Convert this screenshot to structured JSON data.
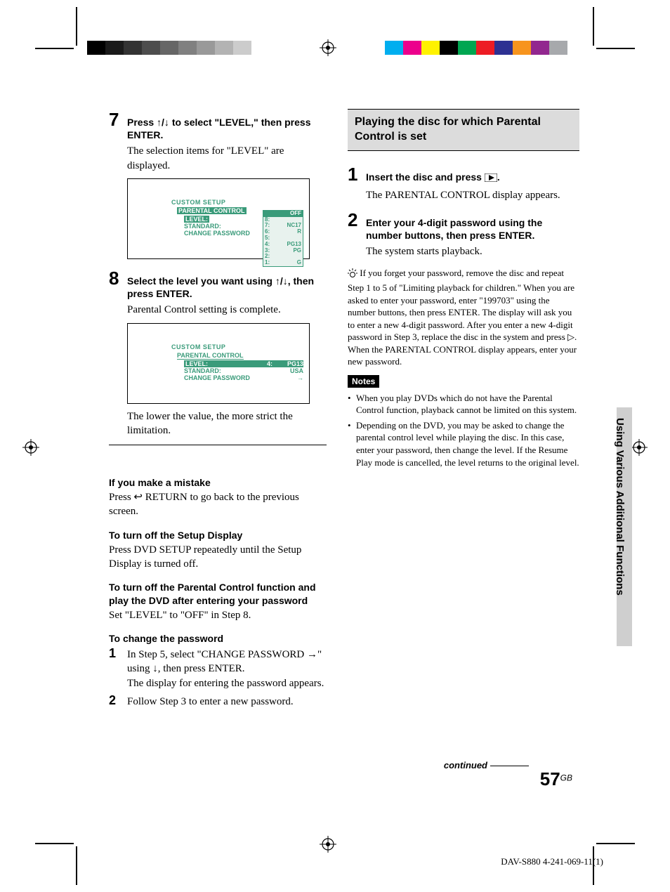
{
  "print": {
    "gray_bar": [
      "#000000",
      "#1a1a1a",
      "#333333",
      "#4d4d4d",
      "#666666",
      "#808080",
      "#999999",
      "#b3b3b3",
      "#cccccc",
      "#ffffff"
    ],
    "color_bar": [
      "#00aeef",
      "#ec008c",
      "#fff200",
      "#000000",
      "#00a651",
      "#ed1c24",
      "#2e3192",
      "#f7941d",
      "#92278f",
      "#a7a9ac"
    ]
  },
  "left": {
    "step7": {
      "num": "7",
      "head_a": "Press ",
      "head_arrows": "↑/↓",
      "head_b": " to select \"LEVEL,\" then press ENTER.",
      "body": "The selection items for \"LEVEL\" are displayed."
    },
    "screen1": {
      "title": "CUSTOM SETUP",
      "sub": "PARENTAL CONTROL",
      "rows": [
        {
          "label": "LEVEL:",
          "val": "OFF",
          "sel": true
        },
        {
          "label": "STANDARD:",
          "val": ""
        },
        {
          "label": "CHANGE PASSWORD",
          "val": ""
        }
      ],
      "dropdown": [
        {
          "n": "",
          "v": "OFF",
          "sel": true
        },
        {
          "n": "8:",
          "v": ""
        },
        {
          "n": "7:",
          "v": "NC17"
        },
        {
          "n": "6:",
          "v": "R"
        },
        {
          "n": "5:",
          "v": ""
        },
        {
          "n": "4:",
          "v": "PG13"
        },
        {
          "n": "3:",
          "v": "PG"
        },
        {
          "n": "2:",
          "v": ""
        },
        {
          "n": "1:",
          "v": "G"
        }
      ]
    },
    "step8": {
      "num": "8",
      "head_a": "Select the level you want using ",
      "head_arrows": "↑/↓",
      "head_b": ", then press ENTER.",
      "body": "Parental Control setting is complete."
    },
    "screen2": {
      "title": "CUSTOM SETUP",
      "sub": "PARENTAL CONTROL",
      "rows": [
        {
          "label": "LEVEL:",
          "n": "4:",
          "val": "PG13",
          "sel": true
        },
        {
          "label": "STANDARD:",
          "val": "USA"
        },
        {
          "label": "CHANGE PASSWORD",
          "val": "→"
        }
      ]
    },
    "after8": "The lower the value, the more strict the limitation.",
    "mistake_h": "If you make a mistake",
    "mistake_b": "Press ↩ RETURN to go back to the previous screen.",
    "turnoff_h": "To turn off the Setup Display",
    "turnoff_b": "Press DVD SETUP repeatedly until the Setup Display is turned off.",
    "pcoff_h": "To turn off the Parental Control function and play the DVD after entering your password",
    "pcoff_b": "Set \"LEVEL\" to \"OFF\" in Step 8.",
    "chpw_h": "To change the password",
    "chpw_1": {
      "num": "1",
      "body_a": "In Step 5, select \"CHANGE PASSWORD →\" using ",
      "body_arrow": "↓",
      "body_b": ", then press ENTER.",
      "body_c": "The display for entering the password appears."
    },
    "chpw_2": {
      "num": "2",
      "body": "Follow Step 3 to enter a new password."
    }
  },
  "right": {
    "section_h": "Playing the disc for which Parental Control is set",
    "step1": {
      "num": "1",
      "head_a": "Insert the disc and press ",
      "head_b": ".",
      "body": "The PARENTAL CONTROL display appears."
    },
    "step2": {
      "num": "2",
      "head": "Enter your 4-digit password using the number buttons, then press ENTER.",
      "body": "The system starts playback."
    },
    "tip": " If you forget your password, remove the disc and repeat Step 1 to 5 of \"Limiting playback for children.\" When you are asked to enter your password, enter \"199703\" using the number buttons, then press ENTER. The display will ask you to enter a new 4-digit password. After you enter a new 4-digit password in Step 3, replace the disc in the system and press ▷. When the PARENTAL CONTROL display appears, enter your new password.",
    "notes_label": "Notes",
    "notes": [
      "When you play DVDs which do not have the Parental Control function, playback cannot be limited on this system.",
      "Depending on the DVD, you may be asked to change the parental control level while playing the disc. In this case, enter your password, then change the level. If the Resume Play mode is cancelled, the level returns to the original level."
    ]
  },
  "side_text": "Using Various Additional Functions",
  "continued": "continued",
  "page_num": "57",
  "page_sup": "GB",
  "footer": "DAV-S880 4-241-069-11(1)"
}
